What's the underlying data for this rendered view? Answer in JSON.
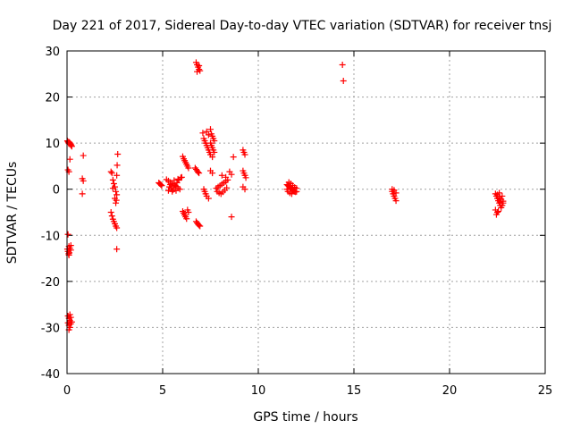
{
  "chart_data": {
    "type": "scatter",
    "title": "Day 221 of 2017, Sidereal Day-to-day VTEC variation (SDTVAR) for receiver tnsj",
    "xlabel": "GPS time / hours",
    "ylabel": "SDTVAR / TECUs",
    "xlim": [
      0,
      25
    ],
    "ylim": [
      -40,
      30
    ],
    "xticks": [
      "0",
      "5",
      "10",
      "15",
      "20",
      "25"
    ],
    "yticks": [
      "-40",
      "-30",
      "-20",
      "-10",
      "0",
      "10",
      "20",
      "30"
    ],
    "grid": true,
    "marker": "+",
    "color": "#ff0000",
    "series": [
      {
        "points": [
          [
            0.02,
            10.5
          ],
          [
            0.05,
            10.3
          ],
          [
            0.08,
            10.1
          ],
          [
            0.1,
            9.9
          ],
          [
            0.12,
            10.2
          ],
          [
            0.15,
            10.0
          ],
          [
            0.18,
            9.7
          ],
          [
            0.2,
            9.8
          ],
          [
            0.22,
            9.5
          ],
          [
            0.25,
            9.3
          ],
          [
            0.05,
            4.2
          ],
          [
            0.1,
            3.8
          ],
          [
            0.15,
            6.5
          ],
          [
            0.05,
            -9.8
          ],
          [
            0.1,
            -12.4
          ],
          [
            0.15,
            -12.8
          ],
          [
            0.2,
            -12.2
          ],
          [
            0.02,
            -13.0
          ],
          [
            0.05,
            -13.5
          ],
          [
            0.08,
            -14.0
          ],
          [
            0.1,
            -14.3
          ],
          [
            0.12,
            -13.8
          ],
          [
            0.2,
            -13.2
          ],
          [
            0.05,
            -27.5
          ],
          [
            0.1,
            -28.0
          ],
          [
            0.15,
            -28.5
          ],
          [
            0.2,
            -27.8
          ],
          [
            0.05,
            -29.0
          ],
          [
            0.1,
            -29.5
          ],
          [
            0.15,
            -30.0
          ],
          [
            0.1,
            -30.5
          ],
          [
            0.2,
            -29.2
          ],
          [
            0.25,
            -28.8
          ],
          [
            0.15,
            -27.2
          ],
          [
            0.85,
            7.3
          ],
          [
            0.8,
            2.3
          ],
          [
            0.85,
            1.8
          ],
          [
            0.8,
            -1.0
          ],
          [
            2.3,
            3.8
          ],
          [
            2.35,
            3.5
          ],
          [
            2.4,
            2.0
          ],
          [
            2.45,
            1.2
          ],
          [
            2.5,
            0.5
          ],
          [
            2.55,
            -0.5
          ],
          [
            2.6,
            -1.2
          ],
          [
            2.3,
            -5.0
          ],
          [
            2.35,
            -5.8
          ],
          [
            2.4,
            -6.5
          ],
          [
            2.45,
            -7.0
          ],
          [
            2.5,
            -7.5
          ],
          [
            2.55,
            -8.0
          ],
          [
            2.6,
            -8.4
          ],
          [
            2.65,
            7.6
          ],
          [
            2.62,
            5.2
          ],
          [
            2.6,
            3.0
          ],
          [
            2.58,
            -2.4
          ],
          [
            2.55,
            -3.0
          ],
          [
            2.6,
            -13.0
          ],
          [
            2.5,
            -2.0
          ],
          [
            2.4,
            0.2
          ],
          [
            4.8,
            1.4
          ],
          [
            4.85,
            1.2
          ],
          [
            4.9,
            1.0
          ],
          [
            4.95,
            0.8
          ],
          [
            5.2,
            2.1
          ],
          [
            5.3,
            1.8
          ],
          [
            5.4,
            1.5
          ],
          [
            5.5,
            1.2
          ],
          [
            5.6,
            0.9
          ],
          [
            5.7,
            0.6
          ],
          [
            5.8,
            0.3
          ],
          [
            5.9,
            0.0
          ],
          [
            5.35,
            0.5
          ],
          [
            5.45,
            0.2
          ],
          [
            5.55,
            -0.1
          ],
          [
            5.65,
            0.8
          ],
          [
            5.75,
            1.4
          ],
          [
            5.85,
            2.0
          ],
          [
            5.95,
            2.5
          ],
          [
            6.0,
            2.6
          ],
          [
            5.3,
            -0.3
          ],
          [
            5.5,
            -0.5
          ],
          [
            5.7,
            -0.3
          ],
          [
            5.4,
            1.0
          ],
          [
            5.6,
            1.9
          ],
          [
            5.8,
            2.2
          ],
          [
            6.05,
            7.1
          ],
          [
            6.1,
            6.6
          ],
          [
            6.15,
            6.2
          ],
          [
            6.2,
            5.8
          ],
          [
            6.25,
            5.4
          ],
          [
            6.3,
            5.0
          ],
          [
            6.35,
            4.6
          ],
          [
            6.1,
            -5.2
          ],
          [
            6.15,
            -5.6
          ],
          [
            6.2,
            -6.0
          ],
          [
            6.25,
            -6.4
          ],
          [
            6.05,
            -4.8
          ],
          [
            6.3,
            -4.5
          ],
          [
            6.35,
            -5.0
          ],
          [
            6.7,
            4.6
          ],
          [
            6.75,
            4.3
          ],
          [
            6.8,
            4.0
          ],
          [
            6.85,
            3.7
          ],
          [
            6.9,
            3.5
          ],
          [
            6.75,
            27.5
          ],
          [
            6.8,
            27.0
          ],
          [
            6.85,
            26.5
          ],
          [
            6.9,
            26.0
          ],
          [
            6.95,
            25.7
          ],
          [
            6.8,
            25.5
          ],
          [
            6.9,
            26.8
          ],
          [
            6.75,
            -7.0
          ],
          [
            6.8,
            -7.3
          ],
          [
            6.85,
            -7.6
          ],
          [
            6.9,
            -7.8
          ],
          [
            6.95,
            -8.0
          ],
          [
            7.1,
            12.2
          ],
          [
            7.15,
            11.0
          ],
          [
            7.2,
            10.5
          ],
          [
            7.25,
            10.0
          ],
          [
            7.3,
            9.5
          ],
          [
            7.35,
            9.0
          ],
          [
            7.4,
            8.5
          ],
          [
            7.45,
            8.0
          ],
          [
            7.5,
            13.0
          ],
          [
            7.55,
            12.0
          ],
          [
            7.6,
            11.5
          ],
          [
            7.65,
            11.0
          ],
          [
            7.7,
            10.5
          ],
          [
            7.5,
            10.0
          ],
          [
            7.55,
            9.5
          ],
          [
            7.6,
            9.0
          ],
          [
            7.65,
            8.5
          ],
          [
            7.7,
            8.0
          ],
          [
            7.5,
            7.5
          ],
          [
            7.6,
            7.0
          ],
          [
            7.4,
            11.8
          ],
          [
            7.3,
            12.5
          ],
          [
            7.5,
            4.0
          ],
          [
            7.6,
            3.5
          ],
          [
            7.4,
            -2.0
          ],
          [
            7.3,
            -1.5
          ],
          [
            7.2,
            -0.5
          ],
          [
            7.15,
            0.0
          ],
          [
            7.25,
            -1.0
          ],
          [
            7.8,
            0.2
          ],
          [
            7.9,
            0.5
          ],
          [
            8.0,
            0.8
          ],
          [
            8.1,
            1.1
          ],
          [
            8.2,
            1.4
          ],
          [
            8.3,
            1.7
          ],
          [
            8.4,
            2.0
          ],
          [
            7.85,
            -0.5
          ],
          [
            7.95,
            -0.8
          ],
          [
            8.05,
            -1.0
          ],
          [
            8.15,
            -0.6
          ],
          [
            8.25,
            -0.2
          ],
          [
            8.35,
            0.3
          ],
          [
            8.1,
            3.0
          ],
          [
            8.3,
            2.6
          ],
          [
            8.5,
            3.8
          ],
          [
            8.6,
            3.2
          ],
          [
            8.7,
            7.0
          ],
          [
            8.6,
            -6.0
          ],
          [
            9.2,
            8.5
          ],
          [
            9.25,
            8.0
          ],
          [
            9.3,
            7.5
          ],
          [
            9.2,
            4.0
          ],
          [
            9.25,
            3.5
          ],
          [
            9.3,
            3.0
          ],
          [
            9.35,
            2.5
          ],
          [
            9.2,
            0.5
          ],
          [
            9.3,
            0.0
          ],
          [
            11.5,
            1.0
          ],
          [
            11.55,
            0.8
          ],
          [
            11.6,
            0.6
          ],
          [
            11.65,
            0.4
          ],
          [
            11.7,
            0.2
          ],
          [
            11.75,
            0.0
          ],
          [
            11.8,
            -0.2
          ],
          [
            11.85,
            -0.4
          ],
          [
            11.9,
            -0.5
          ],
          [
            11.95,
            -0.6
          ],
          [
            12.0,
            -0.5
          ],
          [
            11.5,
            0.0
          ],
          [
            11.6,
            1.5
          ],
          [
            11.7,
            1.2
          ],
          [
            11.8,
            0.8
          ],
          [
            11.9,
            0.4
          ],
          [
            12.0,
            0.2
          ],
          [
            11.55,
            -0.5
          ],
          [
            11.65,
            -0.8
          ],
          [
            11.75,
            -1.0
          ],
          [
            14.4,
            27.0
          ],
          [
            14.45,
            23.5
          ],
          [
            17.0,
            -0.5
          ],
          [
            17.05,
            -1.0
          ],
          [
            17.1,
            -1.5
          ],
          [
            17.15,
            -2.0
          ],
          [
            17.2,
            -2.5
          ],
          [
            17.0,
            0.0
          ],
          [
            17.1,
            -0.2
          ],
          [
            17.2,
            -0.8
          ],
          [
            22.4,
            -1.0
          ],
          [
            22.45,
            -1.5
          ],
          [
            22.5,
            -2.0
          ],
          [
            22.55,
            -2.5
          ],
          [
            22.6,
            -3.0
          ],
          [
            22.65,
            -3.5
          ],
          [
            22.7,
            -4.0
          ],
          [
            22.75,
            -3.5
          ],
          [
            22.8,
            -3.0
          ],
          [
            22.5,
            -1.2
          ],
          [
            22.6,
            -1.8
          ],
          [
            22.7,
            -2.2
          ],
          [
            22.8,
            -2.6
          ],
          [
            22.4,
            -4.5
          ],
          [
            22.5,
            -5.0
          ],
          [
            22.45,
            -5.5
          ],
          [
            22.55,
            -4.8
          ],
          [
            22.65,
            -2.8
          ],
          [
            22.75,
            -1.5
          ],
          [
            22.6,
            -0.8
          ]
        ]
      }
    ]
  }
}
